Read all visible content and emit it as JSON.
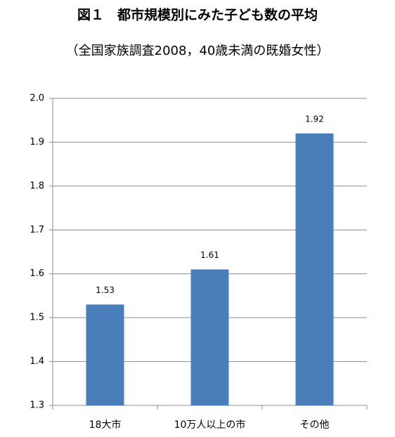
{
  "chart_data": {
    "type": "bar",
    "title": "図１　都市規模別にみた子ども数の平均",
    "subtitle": "（全国家族調査2008，40歳未満の既婚女性）",
    "categories": [
      "18大市",
      "10万人以上の市",
      "その他"
    ],
    "values": [
      1.53,
      1.61,
      1.92
    ],
    "color": "#4a7ebb",
    "ylim": [
      1.3,
      2.0
    ],
    "yticks": [
      1.3,
      1.4,
      1.5,
      1.6,
      1.7,
      1.8,
      1.9,
      {
        "value": 2.0,
        "label": "2.0"
      }
    ],
    "grid": true
  }
}
